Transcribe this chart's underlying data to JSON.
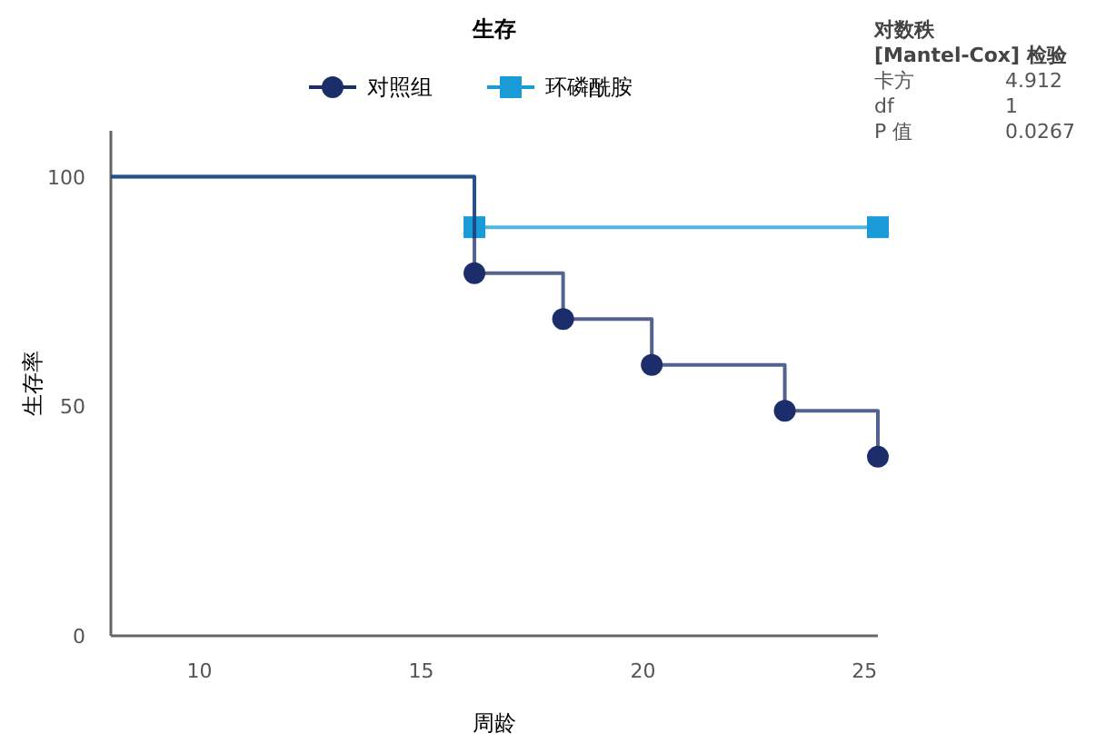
{
  "chart_data": {
    "type": "step",
    "title": "生存",
    "xlabel": "周龄",
    "ylabel": "生存率",
    "xlim": [
      8,
      25.3
    ],
    "xticks": [
      10,
      15,
      20,
      25
    ],
    "ylim": [
      0,
      110
    ],
    "yticks": [
      0,
      50,
      100
    ],
    "legend": "top",
    "grid": false,
    "series": [
      {
        "name": "对照组",
        "color": "#1b2d6b",
        "x": [
          8,
          16.2,
          18.2,
          20.2,
          23.2,
          25.3
        ],
        "values": [
          100,
          79,
          69,
          59,
          49,
          39
        ],
        "marker": "circle"
      },
      {
        "name": "环磷酰胺",
        "color": "#1a9bd7",
        "x": [
          8,
          16.2,
          25.3
        ],
        "values": [
          100,
          89,
          89
        ],
        "marker": "square"
      }
    ],
    "annotations": [
      "对数秩",
      "[Mantel-Cox] 检验",
      "卡方",
      "4.912",
      "df",
      "1",
      "P 值",
      "0.0267"
    ]
  }
}
